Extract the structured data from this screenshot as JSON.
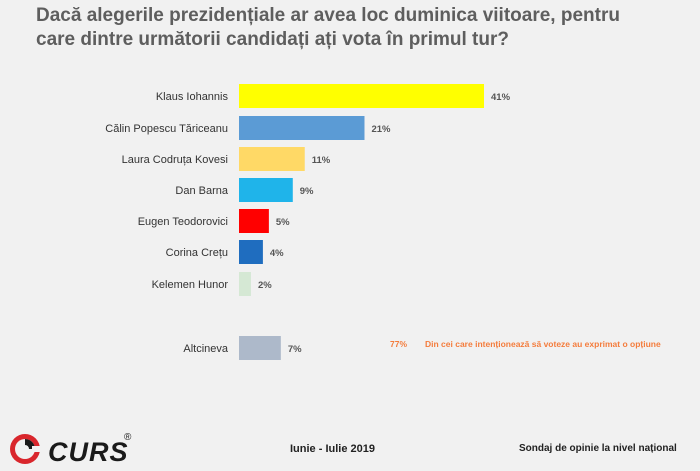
{
  "header": {
    "title_line1": "Dacă alegerile prezidențiale ar avea loc duminica viitoare, pentru",
    "title_line2": "care dintre următorii candidați ați vota în primul tur?"
  },
  "chart_data": {
    "type": "bar",
    "orientation": "horizontal",
    "categories": [
      "Klaus Iohannis",
      "Călin Popescu Tăriceanu",
      "Laura Codruța Kovesi",
      "Dan Barna",
      "Eugen Teodorovici",
      "Corina Crețu",
      "Kelemen Hunor",
      "Altcineva"
    ],
    "values": [
      41,
      21,
      11,
      9,
      5,
      4,
      2,
      7
    ],
    "value_labels": [
      "41%",
      "21%",
      "11%",
      "9%",
      "5%",
      "4%",
      "2%",
      "7%"
    ],
    "colors": [
      "#ffff00",
      "#5b9bd5",
      "#ffd966",
      "#1fb4ea",
      "#ff0000",
      "#1f6dbf",
      "#d5e8d4",
      "#adb9ca"
    ],
    "xlim": [
      0,
      41
    ],
    "grid": false,
    "annotation": {
      "value": "77%",
      "text": "Din cei care intenționează să voteze au exprimat o opțiune",
      "color": "#f47c3c"
    }
  },
  "footer": {
    "logo_text": "CURS",
    "logo_reg": "®",
    "date": "Iunie - Iulie 2019",
    "note": "Sondaj de opinie la nivel național"
  }
}
